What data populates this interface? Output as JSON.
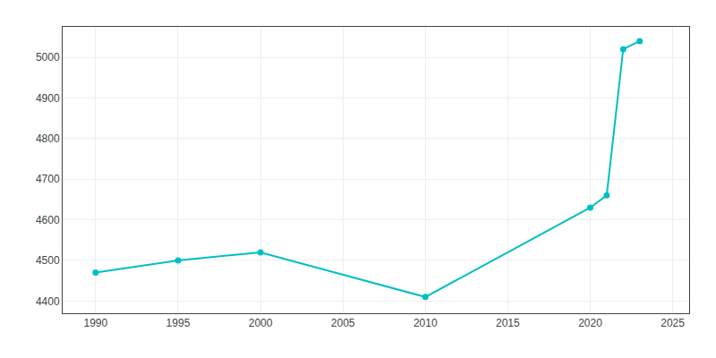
{
  "chart_data": {
    "type": "line",
    "x": [
      1990,
      1995,
      2000,
      2010,
      2020,
      2021,
      2022,
      2023
    ],
    "values": [
      4470,
      4500,
      4520,
      4410,
      4630,
      4660,
      5020,
      5040
    ],
    "color": "#00BFC4",
    "marker": "circle",
    "xlim": [
      1988,
      2026
    ],
    "ylim": [
      4370,
      5075
    ],
    "xticks": [
      1990,
      1995,
      2000,
      2005,
      2010,
      2015,
      2020,
      2025
    ],
    "yticks": [
      4400,
      4500,
      4600,
      4700,
      4800,
      4900,
      5000
    ],
    "grid": true
  }
}
